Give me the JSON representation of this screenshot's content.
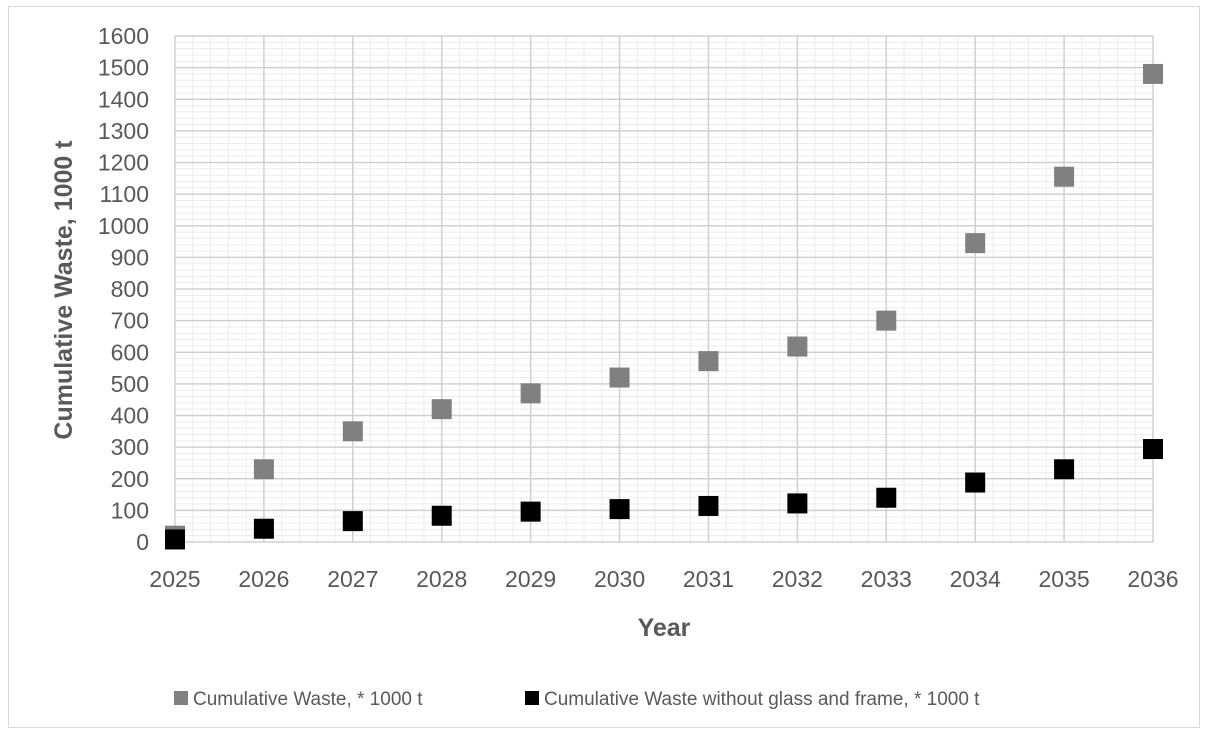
{
  "chart_data": {
    "type": "scatter",
    "title": "",
    "xlabel": "Year",
    "ylabel": "Cumulative Waste, 1000 t",
    "x": [
      2025,
      2026,
      2027,
      2028,
      2029,
      2030,
      2031,
      2032,
      2033,
      2034,
      2035,
      2036
    ],
    "xlim": [
      2025,
      2036
    ],
    "ylim": [
      0,
      1600
    ],
    "y_major_step": 100,
    "grid": "major and minor",
    "legend_position": "bottom",
    "series": [
      {
        "name": "Cumulative Waste, * 1000 t",
        "color": "#808080",
        "marker": "square",
        "values": [
          20,
          230,
          350,
          420,
          470,
          520,
          572,
          618,
          700,
          945,
          1155,
          1480
        ]
      },
      {
        "name": "Cumulative Waste without glass and frame, * 1000 t",
        "color": "#000000",
        "marker": "square",
        "values": [
          8,
          42,
          66,
          83,
          96,
          104,
          114,
          122,
          140,
          188,
          230,
          294
        ]
      }
    ],
    "colors": {
      "major_grid": "#d0d0d0",
      "minor_grid": "#ececec",
      "text": "#595959"
    }
  }
}
